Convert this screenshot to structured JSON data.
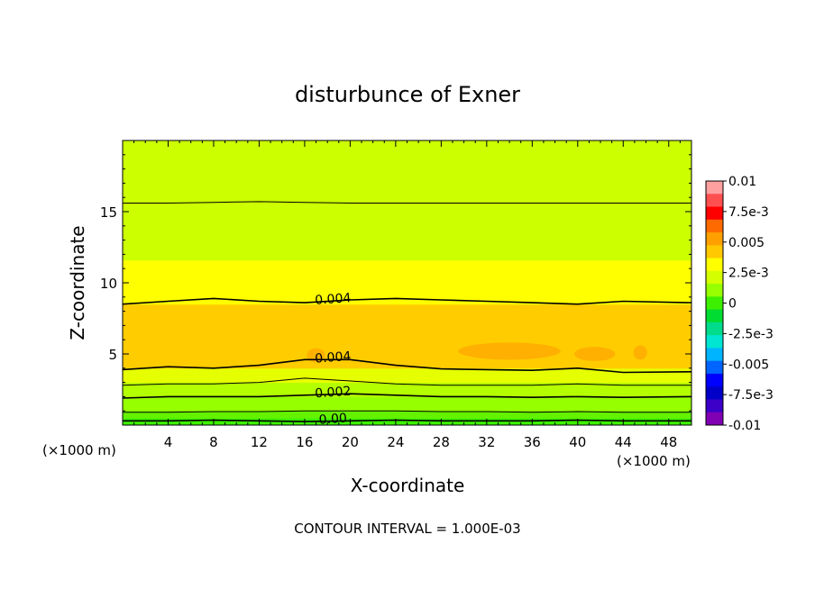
{
  "chart_data": {
    "type": "heatmap",
    "title": "disturbunce of Exner",
    "xlabel": "X-coordinate",
    "ylabel": "Z-coordinate",
    "x_unit": "(×1000 m)",
    "y_unit": "(×1000 m)",
    "xlim": [
      0,
      50
    ],
    "ylim": [
      0,
      20
    ],
    "x_ticks": [
      4,
      8,
      12,
      16,
      20,
      24,
      28,
      32,
      36,
      40,
      44,
      48
    ],
    "y_ticks": [
      5,
      10,
      15
    ],
    "footer": "CONTOUR INTERVAL = 1.000E-03",
    "contour_interval": 0.001,
    "colorbar": {
      "min": -0.01,
      "max": 0.01,
      "labels": [
        "0.01",
        "7.5e-3",
        "0.005",
        "2.5e-3",
        "0",
        "-2.5e-3",
        "-0.005",
        "-7.5e-3",
        "-0.01"
      ],
      "colors": [
        "#ffa0a0",
        "#ff5050",
        "#ff0000",
        "#ff6a00",
        "#ffa000",
        "#ffc800",
        "#ffff00",
        "#d4ff00",
        "#96ff00",
        "#3cf000",
        "#00dc32",
        "#00dc8c",
        "#00e6d2",
        "#00b4ff",
        "#0064ff",
        "#0000ff",
        "#0000c8",
        "#3c00c8",
        "#8000b4"
      ]
    },
    "bands": [
      {
        "z_bottom": 0.0,
        "z_top": 0.5,
        "value": 0.0005,
        "color": "#3cf000"
      },
      {
        "z_bottom": 0.5,
        "z_top": 1.0,
        "value": 0.0012,
        "color": "#64f200"
      },
      {
        "z_bottom": 1.0,
        "z_top": 2.0,
        "value": 0.0018,
        "color": "#96ff00"
      },
      {
        "z_bottom": 2.0,
        "z_top": 3.0,
        "value": 0.0025,
        "color": "#b4ff00"
      },
      {
        "z_bottom": 3.0,
        "z_top": 4.0,
        "value": 0.0035,
        "color": "#e6ff00"
      },
      {
        "z_bottom": 4.0,
        "z_top": 8.5,
        "value": 0.0045,
        "color": "#ffcc00"
      },
      {
        "z_bottom": 8.5,
        "z_top": 11.6,
        "value": 0.0036,
        "color": "#ffff00"
      },
      {
        "z_bottom": 11.6,
        "z_top": 20.0,
        "value": 0.0028,
        "color": "#ccff00"
      }
    ],
    "contours": [
      {
        "level": 0.0,
        "label": "0.00",
        "z": [
          0.3,
          0.3,
          0.35,
          0.3,
          0.25,
          0.3,
          0.35,
          0.3,
          0.3,
          0.3,
          0.35,
          0.3,
          0.3
        ]
      },
      {
        "level": 0.001,
        "label": "",
        "z": [
          0.9,
          0.9,
          0.95,
          0.95,
          1.0,
          1.0,
          1.0,
          0.95,
          0.95,
          0.9,
          0.95,
          0.9,
          0.9
        ]
      },
      {
        "level": 0.002,
        "label": "0.002",
        "z": [
          1.9,
          2.0,
          2.0,
          2.0,
          2.1,
          2.2,
          2.1,
          2.0,
          2.0,
          1.95,
          2.0,
          1.95,
          2.0
        ]
      },
      {
        "level": 0.003,
        "label": "",
        "z": [
          2.8,
          2.9,
          2.9,
          3.0,
          3.3,
          3.1,
          2.9,
          2.8,
          2.8,
          2.8,
          2.9,
          2.8,
          2.8
        ]
      },
      {
        "level": 0.004,
        "label": "0.004",
        "z": [
          3.9,
          4.1,
          4.0,
          4.2,
          4.6,
          4.6,
          4.2,
          3.95,
          3.9,
          3.85,
          4.0,
          3.7,
          3.75
        ]
      },
      {
        "level": 0.004,
        "label": "0.004",
        "z": [
          8.5,
          8.7,
          8.9,
          8.7,
          8.6,
          8.8,
          8.9,
          8.8,
          8.7,
          8.6,
          8.5,
          8.7,
          8.6
        ]
      },
      {
        "level": 0.003,
        "label": "",
        "z": [
          15.6,
          15.6,
          15.65,
          15.7,
          15.65,
          15.6,
          15.6,
          15.6,
          15.6,
          15.6,
          15.6,
          15.6,
          15.6
        ]
      }
    ],
    "contour_x": [
      0,
      4,
      8,
      12,
      16,
      20,
      24,
      28,
      32,
      36,
      40,
      44,
      50
    ],
    "patches": [
      {
        "x": 17.0,
        "z": 4.9,
        "rx": 0.8,
        "rz": 0.5
      },
      {
        "x": 34.0,
        "z": 5.2,
        "rx": 4.5,
        "rz": 0.6
      },
      {
        "x": 41.5,
        "z": 5.0,
        "rx": 1.8,
        "rz": 0.5
      },
      {
        "x": 45.5,
        "z": 5.1,
        "rx": 0.6,
        "rz": 0.5
      }
    ]
  }
}
